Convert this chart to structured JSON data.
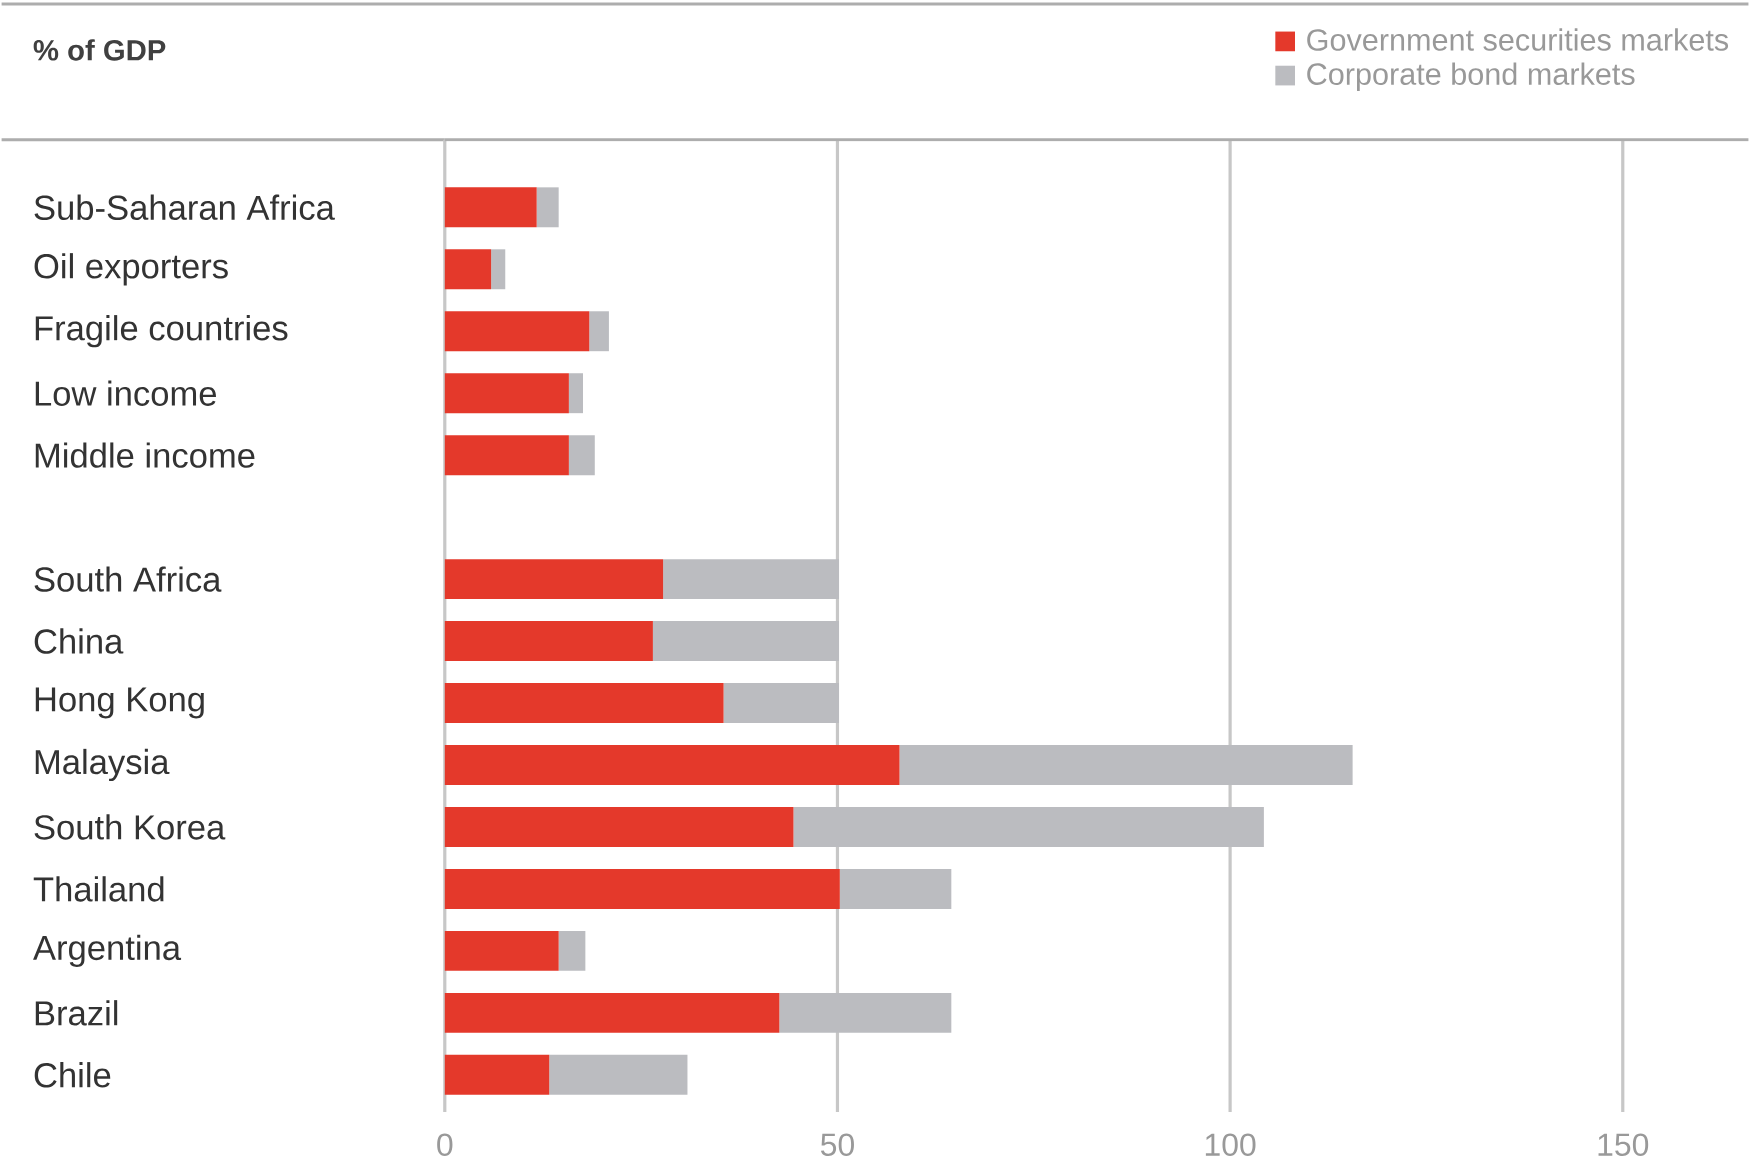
{
  "chart_data": {
    "type": "bar",
    "orientation": "horizontal",
    "stacked": true,
    "xlabel": "% of GDP",
    "categories": [
      "Sub-Saharan Africa",
      "Oil exporters",
      "Fragile countries",
      "Low income",
      "Middle income",
      null,
      "South Africa",
      "China",
      "Hong Kong",
      "Malaysia",
      "South Korea",
      "Thailand",
      "Argentina",
      "Brazil",
      "Chile"
    ],
    "series": [
      {
        "name": "Government securities markets",
        "color": "#e4392b",
        "values": [
          11.7,
          5.9,
          18.4,
          15.8,
          15.8,
          null,
          27.8,
          26.5,
          35.5,
          57.9,
          44.4,
          50.3,
          14.5,
          42.6,
          13.3
        ]
      },
      {
        "name": "Corporate bond markets",
        "color": "#bbbcc0",
        "values": [
          2.8,
          1.8,
          2.5,
          1.8,
          3.3,
          null,
          22.4,
          23.7,
          14.7,
          57.7,
          59.9,
          14.2,
          3.4,
          21.9,
          17.6
        ]
      }
    ],
    "xlim": [
      0,
      166
    ],
    "xticks": [
      0,
      50,
      100,
      150
    ],
    "grid": "x",
    "legend": "top right"
  }
}
